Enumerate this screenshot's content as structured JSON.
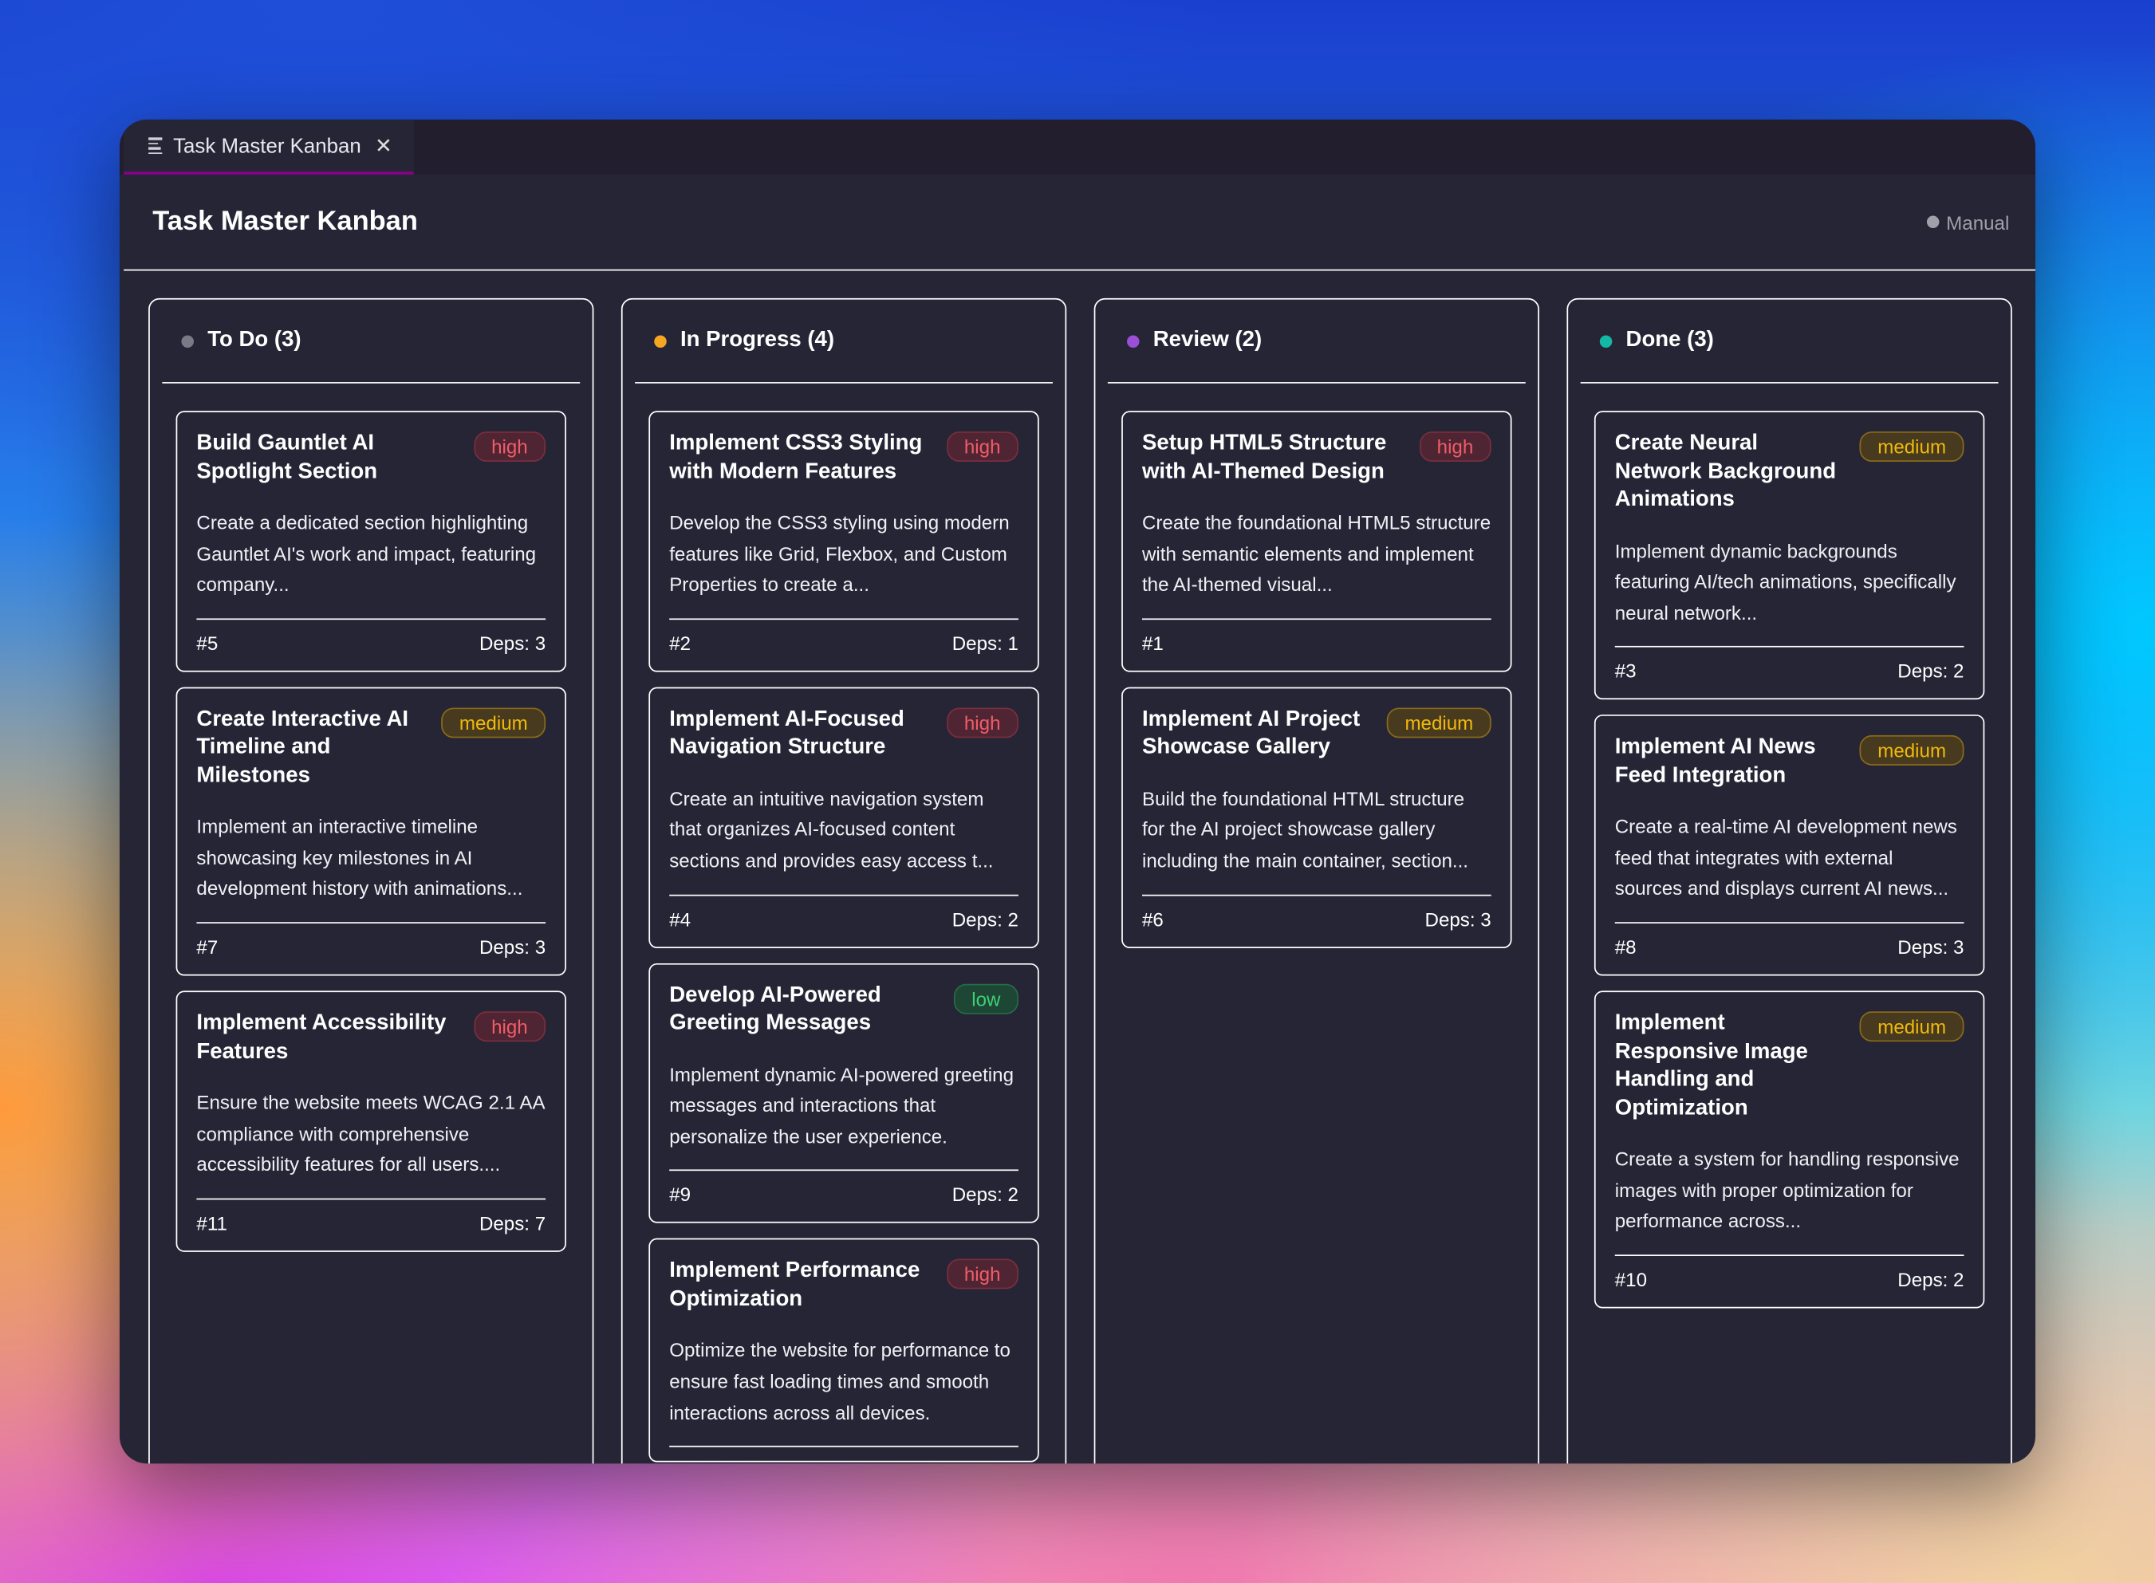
{
  "tab": {
    "icon": "list-icon",
    "label": "Task Master Kanban",
    "close_icon": "close-icon"
  },
  "header": {
    "title": "Task Master Kanban",
    "mode_label": "Manual",
    "mode_color": "#a0a0aa"
  },
  "priority_colors": {
    "high": "#f25c68",
    "medium": "#f0b90b",
    "low": "#3fd075"
  },
  "columns": [
    {
      "label": "To Do (3)",
      "dot_color": "#7a7a86",
      "cards": [
        {
          "title": "Build Gauntlet AI Spotlight Section",
          "priority": "high",
          "description": "Create a dedicated section highlighting Gauntlet AI's work and impact, featuring company...",
          "id": "#5",
          "deps": "Deps: 3"
        },
        {
          "title": "Create Interactive AI Timeline and Milestones",
          "priority": "medium",
          "description": "Implement an interactive timeline showcasing key milestones in AI development history with animations...",
          "id": "#7",
          "deps": "Deps: 3"
        },
        {
          "title": "Implement Accessibility Features",
          "priority": "high",
          "description": "Ensure the website meets WCAG 2.1 AA compliance with comprehensive accessibility features for all users....",
          "id": "#11",
          "deps": "Deps: 7"
        }
      ]
    },
    {
      "label": "In Progress (4)",
      "dot_color": "#f5a623",
      "cards": [
        {
          "title": "Implement CSS3 Styling with Modern Features",
          "priority": "high",
          "description": "Develop the CSS3 styling using modern features like Grid, Flexbox, and Custom Properties to create a...",
          "id": "#2",
          "deps": "Deps: 1"
        },
        {
          "title": "Implement AI-Focused Navigation Structure",
          "priority": "high",
          "description": "Create an intuitive navigation system that organizes AI-focused content sections and provides easy access t...",
          "id": "#4",
          "deps": "Deps: 2"
        },
        {
          "title": "Develop AI-Powered Greeting Messages",
          "priority": "low",
          "description": "Implement dynamic AI-powered greeting messages and interactions that personalize the user experience.",
          "id": "#9",
          "deps": "Deps: 2"
        },
        {
          "title": "Implement Performance Optimization",
          "priority": "high",
          "description": "Optimize the website for performance to ensure fast loading times and smooth interactions across all devices."
        }
      ]
    },
    {
      "label": "Review (2)",
      "dot_color": "#9b4fd6",
      "cards": [
        {
          "title": "Setup HTML5 Structure with AI-Themed Design",
          "priority": "high",
          "description": "Create the foundational HTML5 structure with semantic elements and implement the AI-themed visual...",
          "id": "#1",
          "deps": ""
        },
        {
          "title": "Implement AI Project Showcase Gallery",
          "priority": "medium",
          "description": "Build the foundational HTML structure for the AI project showcase gallery including the main container, section...",
          "id": "#6",
          "deps": "Deps: 3"
        }
      ]
    },
    {
      "label": "Done (3)",
      "dot_color": "#14b8a6",
      "cards": [
        {
          "title": "Create Neural Network Background Animations",
          "priority": "medium",
          "description": "Implement dynamic backgrounds featuring AI/tech animations, specifically neural network...",
          "id": "#3",
          "deps": "Deps: 2"
        },
        {
          "title": "Implement AI News Feed Integration",
          "priority": "medium",
          "description": "Create a real-time AI development news feed that integrates with external sources and displays current AI news...",
          "id": "#8",
          "deps": "Deps: 3"
        },
        {
          "title": "Implement Responsive Image Handling and Optimization",
          "priority": "medium",
          "description": "Create a system for handling responsive images with proper optimization for performance across...",
          "id": "#10",
          "deps": "Deps: 2"
        }
      ]
    }
  ]
}
